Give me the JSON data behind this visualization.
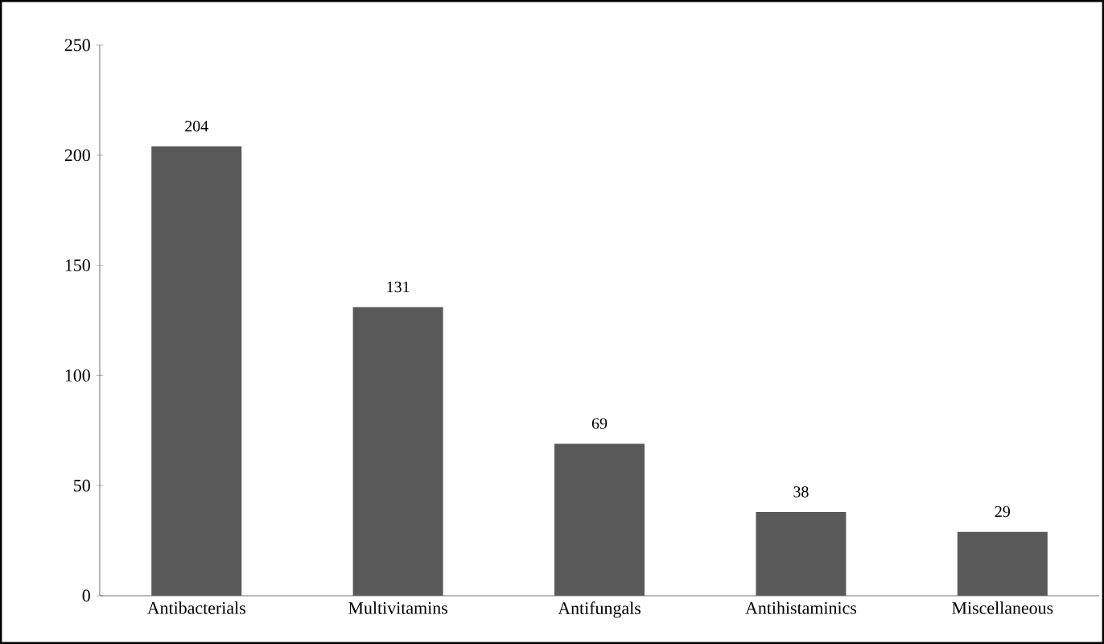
{
  "chart_data": {
    "type": "bar",
    "categories": [
      "Antibacterials",
      "Multivitamins",
      "Antifungals",
      "Antihistaminics",
      "Miscellaneous"
    ],
    "values": [
      204,
      131,
      69,
      38,
      29
    ],
    "color": "#595959",
    "ylim": [
      0,
      250
    ],
    "yticks": [
      0,
      50,
      100,
      150,
      200,
      250
    ],
    "data_labels": true
  }
}
